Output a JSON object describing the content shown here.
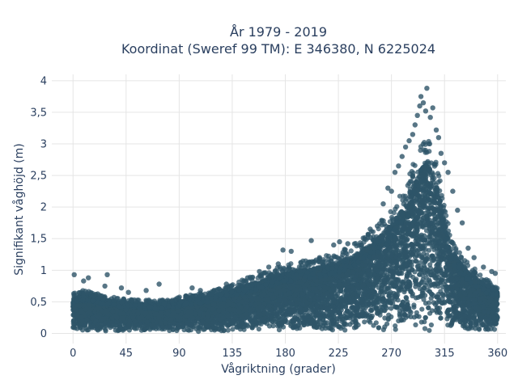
{
  "chart_data": {
    "type": "scatter",
    "title_line1": "År 1979 - 2019",
    "title_line2": "Koordinat (Sweref 99 TM): E 346380, N 6225024",
    "xlabel": "Vågriktning (grader)",
    "ylabel": "Signifikant våghöjd (m)",
    "xlim": [
      -18,
      367
    ],
    "ylim": [
      -0.16,
      4.1
    ],
    "x_ticks": [
      0,
      45,
      90,
      135,
      180,
      225,
      270,
      315,
      360
    ],
    "y_ticks": [
      0,
      0.5,
      1,
      1.5,
      2,
      2.5,
      3,
      3.5,
      4
    ],
    "y_tick_labels": [
      "0",
      "0,5",
      "1",
      "1,5",
      "2",
      "2,5",
      "3",
      "3,5",
      "4"
    ],
    "grid": true,
    "marker_color": "#2e5468",
    "bulk_envelope": {
      "direction": [
        0,
        10,
        20,
        30,
        45,
        60,
        75,
        90,
        105,
        120,
        135,
        150,
        165,
        180,
        195,
        210,
        225,
        240,
        255,
        270,
        280,
        290,
        295,
        300,
        305,
        310,
        315,
        320,
        330,
        340,
        350,
        360
      ],
      "typical_max_height": [
        0.55,
        0.6,
        0.55,
        0.52,
        0.48,
        0.46,
        0.46,
        0.5,
        0.55,
        0.6,
        0.68,
        0.78,
        0.85,
        0.95,
        1.0,
        1.05,
        1.12,
        1.25,
        1.45,
        1.7,
        2.0,
        2.4,
        2.6,
        2.7,
        2.55,
        2.2,
        1.8,
        1.35,
        1.05,
        0.9,
        0.75,
        0.65
      ]
    },
    "outliers": [
      {
        "x": 1,
        "y": 0.93
      },
      {
        "x": 9,
        "y": 0.83
      },
      {
        "x": 13,
        "y": 0.88
      },
      {
        "x": 27,
        "y": 0.75
      },
      {
        "x": 29,
        "y": 0.93
      },
      {
        "x": 41,
        "y": 0.72
      },
      {
        "x": 47,
        "y": 0.65
      },
      {
        "x": 62,
        "y": 0.68
      },
      {
        "x": 73,
        "y": 0.78
      },
      {
        "x": 101,
        "y": 0.72
      },
      {
        "x": 108,
        "y": 0.68
      },
      {
        "x": 130,
        "y": 0.78
      },
      {
        "x": 148,
        "y": 0.88
      },
      {
        "x": 158,
        "y": 0.98
      },
      {
        "x": 166,
        "y": 1.05
      },
      {
        "x": 174,
        "y": 1.1
      },
      {
        "x": 178,
        "y": 1.32
      },
      {
        "x": 185,
        "y": 1.3
      },
      {
        "x": 202,
        "y": 1.47
      },
      {
        "x": 209,
        "y": 1.2
      },
      {
        "x": 221,
        "y": 1.4
      },
      {
        "x": 226,
        "y": 1.45
      },
      {
        "x": 233,
        "y": 1.42
      },
      {
        "x": 244,
        "y": 1.4
      },
      {
        "x": 252,
        "y": 1.65
      },
      {
        "x": 258,
        "y": 1.7
      },
      {
        "x": 263,
        "y": 2.05
      },
      {
        "x": 267,
        "y": 2.3
      },
      {
        "x": 270,
        "y": 2.25
      },
      {
        "x": 273,
        "y": 2.55
      },
      {
        "x": 276,
        "y": 2.65
      },
      {
        "x": 279,
        "y": 2.8
      },
      {
        "x": 282,
        "y": 2.95
      },
      {
        "x": 285,
        "y": 3.05
      },
      {
        "x": 288,
        "y": 3.15
      },
      {
        "x": 290,
        "y": 3.3
      },
      {
        "x": 292,
        "y": 3.45
      },
      {
        "x": 294,
        "y": 3.6
      },
      {
        "x": 295,
        "y": 3.75
      },
      {
        "x": 297,
        "y": 3.65
      },
      {
        "x": 299,
        "y": 3.52
      },
      {
        "x": 300,
        "y": 3.88
      },
      {
        "x": 303,
        "y": 3.42
      },
      {
        "x": 305,
        "y": 3.57
      },
      {
        "x": 308,
        "y": 3.22
      },
      {
        "x": 310,
        "y": 3.1
      },
      {
        "x": 312,
        "y": 2.85
      },
      {
        "x": 315,
        "y": 2.7
      },
      {
        "x": 318,
        "y": 2.55
      },
      {
        "x": 322,
        "y": 2.25
      },
      {
        "x": 326,
        "y": 1.95
      },
      {
        "x": 330,
        "y": 1.75
      },
      {
        "x": 335,
        "y": 1.35
      },
      {
        "x": 340,
        "y": 1.2
      },
      {
        "x": 348,
        "y": 1.05
      },
      {
        "x": 355,
        "y": 0.98
      },
      {
        "x": 358,
        "y": 0.95
      }
    ]
  }
}
